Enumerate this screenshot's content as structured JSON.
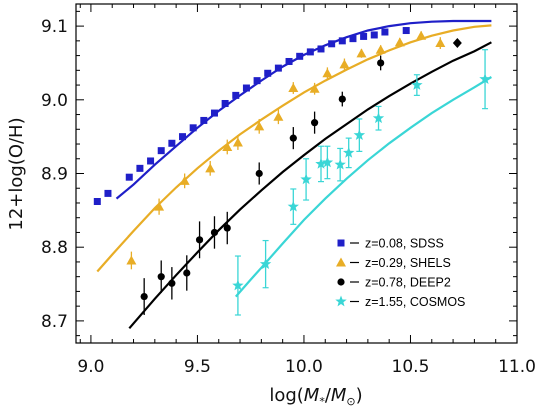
{
  "chart_data": {
    "type": "scatter",
    "xlabel_prefix": "log(",
    "xlabel_m": "M",
    "xlabel_star": "*",
    "xlabel_slash": "/",
    "xlabel_msun": "M",
    "xlabel_sun": "⊙",
    "xlabel_suffix": ")",
    "ylabel": "12+log(O/H)",
    "xlim": [
      8.93,
      11.0
    ],
    "ylim": [
      8.67,
      9.13
    ],
    "grid": false,
    "legend_position": "bottom-right",
    "x_ticks": [
      {
        "value": 9.0,
        "label": "9.0"
      },
      {
        "value": 9.5,
        "label": "9.5"
      },
      {
        "value": 10.0,
        "label": "10.0"
      },
      {
        "value": 10.5,
        "label": "10.5"
      },
      {
        "value": 11.0,
        "label": "11.0"
      }
    ],
    "y_ticks": [
      {
        "value": 8.7,
        "label": "8.7"
      },
      {
        "value": 8.8,
        "label": "8.8"
      },
      {
        "value": 8.9,
        "label": "8.9"
      },
      {
        "value": 9.0,
        "label": "9.0"
      },
      {
        "value": 9.1,
        "label": "9.1"
      }
    ],
    "series": [
      {
        "name": "z=0.08, SDSS",
        "marker": "square",
        "color": "#1f1fc8",
        "x": [
          9.03,
          9.08,
          9.18,
          9.23,
          9.28,
          9.33,
          9.38,
          9.43,
          9.48,
          9.53,
          9.58,
          9.63,
          9.68,
          9.73,
          9.78,
          9.83,
          9.88,
          9.93,
          9.98,
          10.03,
          10.08,
          10.13,
          10.18,
          10.23,
          10.28,
          10.33,
          10.38,
          10.48
        ],
        "y": [
          8.862,
          8.873,
          8.895,
          8.907,
          8.917,
          8.931,
          8.941,
          8.95,
          8.962,
          8.972,
          8.982,
          8.995,
          9.006,
          9.016,
          9.026,
          9.036,
          9.043,
          9.052,
          9.059,
          9.065,
          9.069,
          9.076,
          9.08,
          9.083,
          9.086,
          9.088,
          9.092,
          9.094
        ]
      },
      {
        "name": "z=0.29, SHELS",
        "marker": "triangle",
        "color": "#e8ad26",
        "x": [
          9.19,
          9.32,
          9.44,
          9.56,
          9.64,
          9.69,
          9.79,
          9.88,
          9.95,
          10.05,
          10.11,
          10.19,
          10.27,
          10.36,
          10.45,
          10.55,
          10.64
        ],
        "y": [
          8.782,
          8.855,
          8.89,
          8.907,
          8.936,
          8.942,
          8.964,
          8.977,
          9.016,
          9.015,
          9.036,
          9.048,
          9.063,
          9.068,
          9.078,
          9.087,
          9.077
        ],
        "err": [
          0.012,
          0.011,
          0.01,
          0.01,
          0.01,
          0.01,
          0.01,
          0.01,
          0.008,
          0.008,
          0.008,
          0.008,
          0.006,
          0.006,
          0.006,
          0.006,
          0.008
        ]
      },
      {
        "name": "z=0.78, DEEP2",
        "marker": "circle",
        "color": "#000000",
        "x": [
          9.25,
          9.33,
          9.38,
          9.45,
          9.51,
          9.58,
          9.64,
          9.79,
          9.95,
          10.05,
          10.18,
          10.36,
          10.72
        ],
        "y": [
          8.733,
          8.76,
          8.751,
          8.765,
          8.81,
          8.82,
          8.826,
          8.9,
          8.948,
          8.969,
          9.001,
          9.05,
          9.077
        ],
        "err": [
          0.025,
          0.022,
          0.022,
          0.024,
          0.025,
          0.022,
          0.022,
          0.015,
          0.015,
          0.015,
          0.01,
          0.01,
          0.0
        ]
      },
      {
        "name": "z=1.55, COSMOS",
        "marker": "star",
        "color": "#3ad6d6",
        "x": [
          9.69,
          9.82,
          9.95,
          10.01,
          10.08,
          10.11,
          10.17,
          10.21,
          10.26,
          10.35,
          10.53,
          10.85
        ],
        "y": [
          8.748,
          8.777,
          8.855,
          8.892,
          8.913,
          8.915,
          8.912,
          8.928,
          8.952,
          8.975,
          9.02,
          9.028
        ],
        "err": [
          0.04,
          0.032,
          0.024,
          0.028,
          0.024,
          0.022,
          0.022,
          0.02,
          0.022,
          0.016,
          0.014,
          0.04
        ]
      }
    ],
    "fit_curves": [
      {
        "color": "#1f1fc8",
        "x": [
          9.12,
          9.2,
          9.3,
          9.4,
          9.5,
          9.6,
          9.7,
          9.8,
          9.9,
          10.0,
          10.1,
          10.2,
          10.3,
          10.4,
          10.5,
          10.6,
          10.7,
          10.8,
          10.88
        ],
        "y": [
          8.866,
          8.885,
          8.912,
          8.937,
          8.962,
          8.985,
          9.006,
          9.026,
          9.045,
          9.061,
          9.074,
          9.085,
          9.094,
          9.1,
          9.104,
          9.106,
          9.107,
          9.107,
          9.107
        ]
      },
      {
        "color": "#e8ad26",
        "x": [
          9.03,
          9.1,
          9.2,
          9.3,
          9.4,
          9.5,
          9.6,
          9.7,
          9.8,
          9.9,
          10.0,
          10.1,
          10.2,
          10.3,
          10.4,
          10.5,
          10.6,
          10.7,
          10.8,
          10.88
        ],
        "y": [
          8.767,
          8.79,
          8.822,
          8.853,
          8.881,
          8.907,
          8.931,
          8.953,
          8.973,
          8.992,
          9.01,
          9.026,
          9.041,
          9.055,
          9.067,
          9.078,
          9.087,
          9.094,
          9.099,
          9.101
        ]
      },
      {
        "color": "#000000",
        "x": [
          9.18,
          9.3,
          9.4,
          9.5,
          9.6,
          9.7,
          9.8,
          9.9,
          10.0,
          10.1,
          10.2,
          10.3,
          10.4,
          10.5,
          10.6,
          10.7,
          10.8,
          10.88
        ],
        "y": [
          8.69,
          8.73,
          8.762,
          8.793,
          8.823,
          8.851,
          8.877,
          8.902,
          8.925,
          8.947,
          8.967,
          8.987,
          9.005,
          9.022,
          9.038,
          9.053,
          9.066,
          9.078
        ]
      },
      {
        "color": "#3ad6d6",
        "x": [
          9.68,
          9.75,
          9.8,
          9.9,
          10.0,
          10.1,
          10.2,
          10.3,
          10.4,
          10.5,
          10.6,
          10.7,
          10.8,
          10.88
        ],
        "y": [
          8.733,
          8.756,
          8.772,
          8.805,
          8.837,
          8.866,
          8.893,
          8.918,
          8.941,
          8.962,
          8.982,
          9.0,
          9.017,
          9.031
        ]
      }
    ]
  }
}
